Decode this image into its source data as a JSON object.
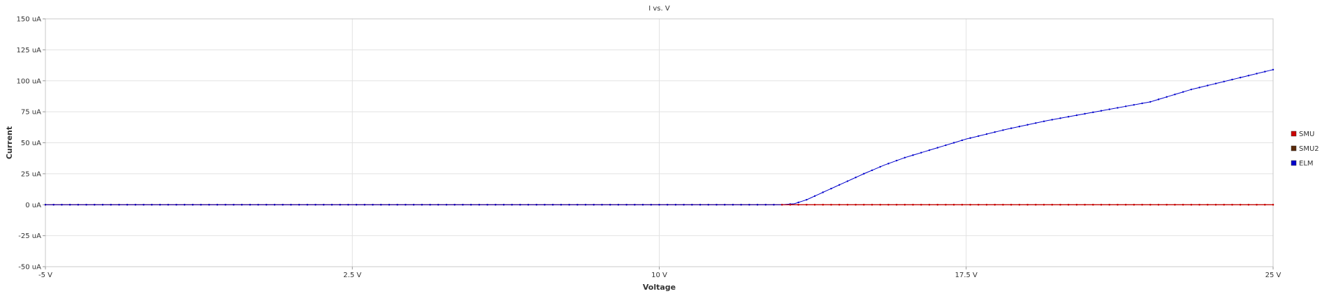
{
  "chart_data": {
    "type": "line",
    "title": "I vs. V",
    "xlabel": "Voltage",
    "ylabel": "Current",
    "xlim": [
      -5,
      25
    ],
    "ylim": [
      -50,
      150
    ],
    "x_ticks": [
      -5,
      2.5,
      10,
      17.5,
      25
    ],
    "x_tick_labels": [
      "-5 V",
      "2.5 V",
      "10 V",
      "17.5 V",
      "25 V"
    ],
    "y_ticks": [
      -50,
      -25,
      0,
      25,
      50,
      75,
      100,
      125,
      150
    ],
    "y_tick_labels": [
      "-50 uA",
      "-25 uA",
      "0 uA",
      "25 uA",
      "50 uA",
      "75 uA",
      "100 uA",
      "125 uA",
      "150 uA"
    ],
    "grid": true,
    "legend_position": "right",
    "x_step": 0.1,
    "series": [
      {
        "name": "SMU",
        "color": "#cc0000",
        "x": [
          -5,
          25
        ],
        "y": [
          0,
          0
        ]
      },
      {
        "name": "SMU2",
        "color": "#5a2a0a",
        "x": [
          -5,
          25
        ],
        "y": [
          0,
          0
        ]
      },
      {
        "name": "ELM",
        "color": "#0000cc",
        "x": [
          -5,
          13.0,
          13.3,
          13.6,
          14.0,
          14.5,
          15.0,
          15.5,
          16.0,
          16.5,
          17.0,
          17.5,
          18.0,
          18.5,
          19.0,
          19.5,
          20.0,
          21.0,
          22.0,
          23.0,
          24.0,
          25.0
        ],
        "y": [
          0,
          0,
          0.8,
          4,
          10,
          17.5,
          25,
          32,
          38,
          43,
          48,
          53,
          57,
          61,
          64.5,
          68,
          71,
          77,
          83,
          93,
          101,
          109
        ]
      }
    ]
  }
}
